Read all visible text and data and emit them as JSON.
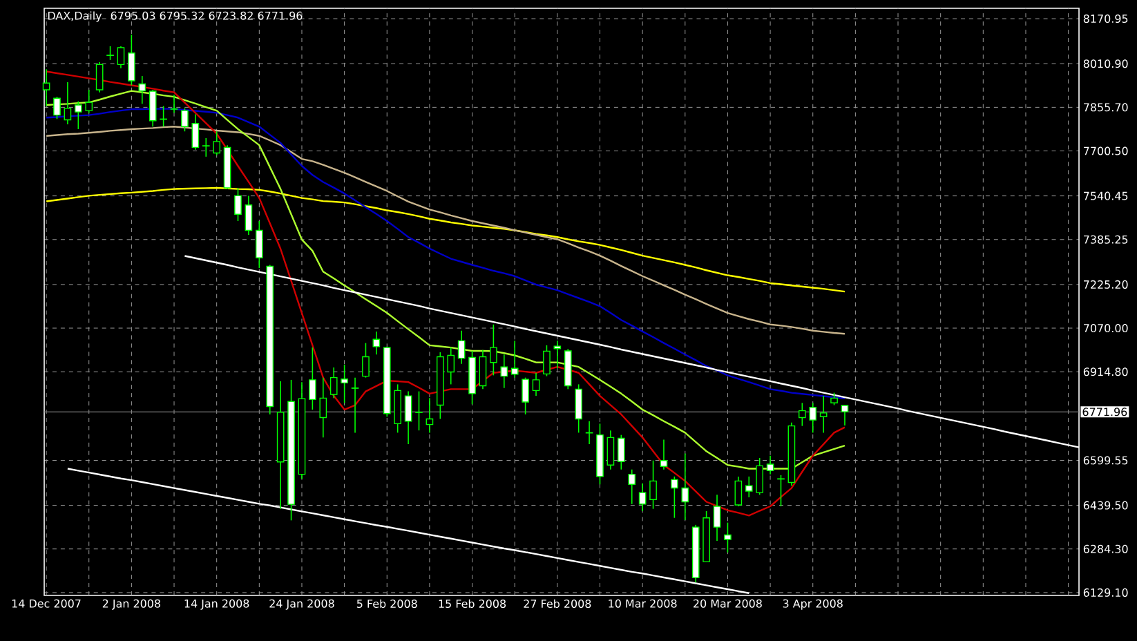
{
  "chart_data": {
    "type": "candlestick",
    "title": "DAX,Daily",
    "subtitle": "6795.03 6795.32 6723.82 6771.96",
    "color": "#00ff00",
    "categories": [
      "14 Dec 2007",
      null,
      null,
      null,
      null,
      null,
      null,
      null,
      "2 Jan 2008",
      null,
      null,
      null,
      null,
      null,
      null,
      null,
      "14 Jan 2008",
      null,
      null,
      null,
      null,
      null,
      null,
      null,
      "24 Jan 2008",
      null,
      null,
      null,
      null,
      null,
      null,
      null,
      "5 Feb 2008",
      null,
      null,
      null,
      null,
      null,
      null,
      null,
      "15 Feb 2008",
      null,
      null,
      null,
      null,
      null,
      null,
      null,
      "27 Feb 2008",
      null,
      null,
      null,
      null,
      null,
      null,
      null,
      "10 Mar 2008",
      null,
      null,
      null,
      null,
      null,
      null,
      null,
      "20 Mar 2008",
      null,
      null,
      null,
      null,
      null,
      null,
      null,
      "3 Apr 2008",
      null,
      null,
      null,
      null,
      null,
      null,
      null,
      null,
      null,
      null,
      null,
      null,
      null,
      null,
      null,
      null,
      null,
      null,
      null,
      null,
      null,
      null,
      null,
      null,
      null
    ],
    "ohlc": [
      [
        7918,
        7991,
        7860,
        7942
      ],
      [
        7888,
        7893,
        7814,
        7828
      ],
      [
        7811,
        7945,
        7795,
        7852
      ],
      [
        7864,
        7877,
        7778,
        7839
      ],
      [
        7844,
        7918,
        7836,
        7873
      ],
      [
        7918,
        8016,
        7909,
        8008
      ],
      [
        8040,
        8073,
        8024,
        8041
      ],
      [
        8008,
        8073,
        7995,
        8068
      ],
      [
        8049,
        8114,
        7934,
        7950
      ],
      [
        7939,
        7967,
        7868,
        7914
      ],
      [
        7913,
        7918,
        7787,
        7808
      ],
      [
        7814,
        7860,
        7787,
        7813
      ],
      [
        7849,
        7901,
        7836,
        7850
      ],
      [
        7844,
        7852,
        7770,
        7787
      ],
      [
        7798,
        7831,
        7705,
        7713
      ],
      [
        7719,
        7746,
        7680,
        7718
      ],
      [
        7693,
        7770,
        7685,
        7734
      ],
      [
        7713,
        7721,
        7565,
        7569
      ],
      [
        7541,
        7569,
        7451,
        7475
      ],
      [
        7508,
        7541,
        7402,
        7418
      ],
      [
        7418,
        7451,
        7284,
        7320
      ],
      [
        7290,
        7295,
        6763,
        6791
      ],
      [
        6594,
        6881,
        6427,
        6771
      ],
      [
        6809,
        6886,
        6386,
        6443
      ],
      [
        6550,
        6878,
        6534,
        6819
      ],
      [
        6886,
        7001,
        6780,
        6816
      ],
      [
        6752,
        6894,
        6681,
        6821
      ],
      [
        6834,
        6930,
        6821,
        6894
      ],
      [
        6889,
        6940,
        6804,
        6875
      ],
      [
        6857,
        6894,
        6698,
        6856
      ],
      [
        6899,
        7017,
        6894,
        6968
      ],
      [
        7030,
        7058,
        6976,
        7004
      ],
      [
        7001,
        7004,
        6755,
        6766
      ],
      [
        6730,
        6870,
        6698,
        6848
      ],
      [
        6829,
        6845,
        6657,
        6739
      ],
      [
        6771,
        6845,
        6706,
        6770
      ],
      [
        6727,
        6821,
        6698,
        6747
      ],
      [
        6796,
        6984,
        6747,
        6968
      ],
      [
        6914,
        7001,
        6870,
        6973
      ],
      [
        7025,
        7061,
        6943,
        6963
      ],
      [
        6966,
        6989,
        6799,
        6837
      ],
      [
        6865,
        6992,
        6853,
        6968
      ],
      [
        6948,
        7083,
        6902,
        7001
      ],
      [
        6932,
        6976,
        6857,
        6899
      ],
      [
        6927,
        7025,
        6894,
        6906
      ],
      [
        6888,
        6894,
        6763,
        6807
      ],
      [
        6848,
        6911,
        6829,
        6886
      ],
      [
        6907,
        7009,
        6899,
        6988
      ],
      [
        7006,
        7025,
        6927,
        6997
      ],
      [
        6989,
        6996,
        6853,
        6865
      ],
      [
        6853,
        6870,
        6698,
        6747
      ],
      [
        6698,
        6739,
        6657,
        6697
      ],
      [
        6690,
        6730,
        6514,
        6542
      ],
      [
        6583,
        6706,
        6567,
        6681
      ],
      [
        6678,
        6690,
        6567,
        6595
      ],
      [
        6550,
        6567,
        6444,
        6514
      ],
      [
        6485,
        6518,
        6419,
        6444
      ],
      [
        6460,
        6599,
        6427,
        6526
      ],
      [
        6599,
        6673,
        6567,
        6578
      ],
      [
        6531,
        6542,
        6395,
        6501
      ],
      [
        6501,
        6624,
        6387,
        6452
      ],
      [
        6362,
        6370,
        6165,
        6182
      ],
      [
        6239,
        6419,
        6239,
        6395
      ],
      [
        6436,
        6477,
        6313,
        6362
      ],
      [
        6334,
        6378,
        6272,
        6318
      ],
      [
        6441,
        6542,
        6436,
        6526
      ],
      [
        6509,
        6542,
        6468,
        6490
      ],
      [
        6485,
        6608,
        6477,
        6580
      ],
      [
        6586,
        6616,
        6550,
        6563
      ],
      [
        6534,
        6547,
        6436,
        6533
      ],
      [
        6521,
        6734,
        6509,
        6722
      ],
      [
        6752,
        6804,
        6722,
        6776
      ],
      [
        6788,
        6804,
        6698,
        6743
      ],
      [
        6755,
        6829,
        6698,
        6768
      ],
      [
        6804,
        6840,
        6796,
        6821
      ],
      [
        6795.03,
        6795.32,
        6723.82,
        6771.96
      ],
      null,
      null,
      null,
      null,
      null,
      null,
      null,
      null,
      null,
      null,
      null,
      null,
      null,
      null,
      null,
      null,
      null,
      null,
      null,
      null,
      null,
      null
    ],
    "series": [
      {
        "type": "line",
        "color": "#ffff00",
        "values": [
          7521,
          7526,
          7531,
          7536,
          7541,
          7544,
          7547,
          7550,
          7552,
          7555,
          7558,
          7562,
          7565,
          7566,
          7567,
          7568,
          7569,
          7567,
          7565,
          7564,
          7562,
          7556,
          7549,
          7541,
          7533,
          7528,
          7522,
          7520,
          7517,
          7511,
          7504,
          7497,
          7489,
          7483,
          7476,
          7468,
          7459,
          7453,
          7446,
          7441,
          7435,
          7431,
          7427,
          7423,
          7418,
          7412,
          7405,
          7400,
          7394,
          7386,
          7379,
          7373,
          7366,
          7357,
          7348,
          7338,
          7328,
          7320,
          7312,
          7304,
          7295,
          7286,
          7276,
          7267,
          7258,
          7252,
          7245,
          7238,
          7230,
          7226,
          7222,
          7218,
          7214,
          7210,
          7205,
          7200,
          null,
          null,
          null,
          null,
          null,
          null,
          null,
          null,
          null,
          null,
          null,
          null,
          null,
          null,
          null,
          null,
          null,
          null,
          null,
          null,
          null,
          null
        ]
      },
      {
        "type": "line",
        "color": "#c8b48c",
        "values": [
          7754,
          7757,
          7760,
          7762,
          7765,
          7768,
          7772,
          7775,
          7778,
          7780,
          7782,
          7785,
          7787,
          7784,
          7780,
          7777,
          7773,
          7770,
          7767,
          7761,
          7754,
          7738,
          7721,
          7697,
          7672,
          7664,
          7651,
          7637,
          7623,
          7607,
          7590,
          7574,
          7558,
          7539,
          7520,
          7506,
          7492,
          7482,
          7471,
          7461,
          7451,
          7443,
          7435,
          7427,
          7418,
          7410,
          7402,
          7394,
          7386,
          7372,
          7357,
          7343,
          7328,
          7310,
          7291,
          7273,
          7255,
          7239,
          7222,
          7206,
          7189,
          7173,
          7156,
          7140,
          7124,
          7113,
          7102,
          7093,
          7083,
          7079,
          7074,
          7068,
          7061,
          7057,
          7053,
          7050,
          null,
          null,
          null,
          null,
          null,
          null,
          null,
          null,
          null,
          null,
          null,
          null,
          null,
          null,
          null,
          null,
          null,
          null,
          null,
          null,
          null,
          null
        ]
      },
      {
        "type": "line",
        "color": "#0000c8",
        "values": [
          7819,
          7821,
          7824,
          7826,
          7828,
          7833,
          7839,
          7844,
          7849,
          7849,
          7850,
          7850,
          7850,
          7846,
          7843,
          7840,
          7836,
          7828,
          7819,
          7803,
          7787,
          7758,
          7729,
          7688,
          7647,
          7615,
          7590,
          7570,
          7549,
          7525,
          7500,
          7476,
          7451,
          7423,
          7394,
          7374,
          7353,
          7335,
          7317,
          7306,
          7295,
          7285,
          7274,
          7265,
          7255,
          7240,
          7225,
          7215,
          7205,
          7191,
          7177,
          7163,
          7148,
          7124,
          7099,
          7079,
          7058,
          7038,
          7017,
          6997,
          6976,
          6956,
          6935,
          6919,
          6902,
          6890,
          6878,
          6866,
          6853,
          6847,
          6840,
          6836,
          6832,
          6828,
          6824,
          6820,
          null,
          null,
          null,
          null,
          null,
          null,
          null,
          null,
          null,
          null,
          null,
          null,
          null,
          null,
          null,
          null,
          null,
          null,
          null,
          null,
          null,
          null
        ]
      },
      {
        "type": "line",
        "color": "#adff2f",
        "values": [
          7864,
          7866,
          7868,
          7871,
          7873,
          7883,
          7894,
          7904,
          7914,
          7909,
          7904,
          7898,
          7893,
          7881,
          7869,
          7856,
          7844,
          7811,
          7778,
          7750,
          7721,
          7643,
          7565,
          7475,
          7385,
          7345,
          7271,
          7247,
          7222,
          7198,
          7173,
          7149,
          7124,
          7095,
          7066,
          7038,
          7009,
          7005,
          7001,
          6995,
          6989,
          6989,
          6988,
          6981,
          6973,
          6961,
          6948,
          6948,
          6948,
          6940,
          6932,
          6909,
          6886,
          6862,
          6837,
          6809,
          6780,
          6760,
          6739,
          6719,
          6698,
          6665,
          6632,
          6608,
          6583,
          6577,
          6570,
          6570,
          6570,
          6570,
          6570,
          6593,
          6616,
          6628,
          6640,
          6652,
          null,
          null,
          null,
          null,
          null,
          null,
          null,
          null,
          null,
          null,
          null,
          null,
          null,
          null,
          null,
          null,
          null,
          null,
          null,
          null,
          null,
          null
        ]
      },
      {
        "type": "line",
        "color": "#d00000",
        "values": [
          7983,
          7977,
          7971,
          7965,
          7959,
          7953,
          7946,
          7940,
          7934,
          7928,
          7922,
          7915,
          7909,
          7872,
          7836,
          7799,
          7762,
          7705,
          7647,
          7590,
          7533,
          7443,
          7352,
          7238,
          7123,
          7009,
          6894,
          6829,
          6780,
          6796,
          6845,
          6864,
          6883,
          6881,
          6878,
          6858,
          6837,
          6845,
          6853,
          6853,
          6853,
          6882,
          6911,
          6915,
          6919,
          6915,
          6911,
          6922,
          6932,
          6922,
          6911,
          6870,
          6829,
          6796,
          6763,
          6722,
          6681,
          6632,
          6583,
          6555,
          6526,
          6489,
          6452,
          6437,
          6422,
          6413,
          6403,
          6420,
          6436,
          6469,
          6501,
          6559,
          6616,
          6657,
          6698,
          6717,
          null,
          null,
          null,
          null,
          null,
          null,
          null,
          null,
          null,
          null,
          null,
          null,
          null,
          null,
          null,
          null,
          null,
          null,
          null,
          null,
          null,
          null
        ]
      },
      {
        "type": "line",
        "color": "#ffffff",
        "values": [
          null,
          null,
          null,
          null,
          null,
          null,
          null,
          null,
          null,
          null,
          null,
          null,
          null,
          7327,
          7319,
          7311,
          7303,
          7295,
          7286,
          7278,
          7270,
          7262,
          7254,
          7246,
          7238,
          7230,
          7222,
          7213,
          7205,
          7197,
          7189,
          7181,
          7173,
          7165,
          7157,
          7149,
          7140,
          7132,
          7124,
          7116,
          7108,
          7100,
          7092,
          7084,
          7076,
          7067,
          7059,
          7051,
          7043,
          7035,
          7027,
          7019,
          7011,
          7003,
          6994,
          6986,
          6978,
          6970,
          6962,
          6954,
          6946,
          6938,
          6930,
          6921,
          6913,
          6905,
          6897,
          6889,
          6881,
          6873,
          6865,
          6857,
          6848,
          6840,
          6832,
          6824,
          6816,
          6808,
          6800,
          6792,
          6784,
          6775,
          6767,
          6759,
          6751,
          6743,
          6735,
          6727,
          6719,
          6711,
          6702,
          6694,
          6686,
          6678,
          6670,
          6662,
          6654,
          6646
        ]
      },
      {
        "type": "line",
        "color": "#ffffff",
        "values": [
          null,
          null,
          6570,
          6563,
          6556,
          6549,
          6542,
          6535,
          6529,
          6522,
          6515,
          6508,
          6501,
          6494,
          6487,
          6480,
          6473,
          6466,
          6459,
          6452,
          6445,
          6439,
          6432,
          6425,
          6418,
          6411,
          6404,
          6397,
          6390,
          6383,
          6376,
          6369,
          6363,
          6356,
          6349,
          6342,
          6335,
          6328,
          6321,
          6314,
          6307,
          6300,
          6293,
          6286,
          6280,
          6273,
          6266,
          6259,
          6252,
          6245,
          6238,
          6231,
          6224,
          6217,
          6210,
          6203,
          6197,
          6190,
          6183,
          6176,
          6169,
          6162,
          6155,
          6148,
          6141,
          6134,
          6127,
          null,
          null,
          null,
          null,
          null,
          null,
          null,
          null,
          null,
          null,
          null,
          null,
          null,
          null,
          null,
          null,
          null,
          null,
          null,
          null,
          null,
          null,
          null,
          null,
          null,
          null,
          null,
          null,
          null,
          null,
          null
        ]
      }
    ],
    "ref_lines": [
      {
        "axis": "y",
        "value": 6771.96,
        "label": "6771.96",
        "color": "#808080"
      }
    ],
    "ylim": [
      6119,
      8208
    ],
    "yticks": [
      {
        "value": 6129.1,
        "label": "6129.10"
      },
      {
        "value": 6284.3,
        "label": "6284.30"
      },
      {
        "value": 6439.5,
        "label": "6439.50"
      },
      {
        "value": 6599.55,
        "label": "6599.55"
      },
      {
        "value": 6914.8,
        "label": "6914.80"
      },
      {
        "value": 7070.0,
        "label": "7070.00"
      },
      {
        "value": 7225.2,
        "label": "7225.20"
      },
      {
        "value": 7385.25,
        "label": "7385.25"
      },
      {
        "value": 7540.45,
        "label": "7540.45"
      },
      {
        "value": 7700.5,
        "label": "7700.50"
      },
      {
        "value": 7855.7,
        "label": "7855.70"
      },
      {
        "value": 8010.9,
        "label": "8010.90"
      },
      {
        "value": 8170.95,
        "label": "8170.95"
      }
    ],
    "grid": true
  }
}
